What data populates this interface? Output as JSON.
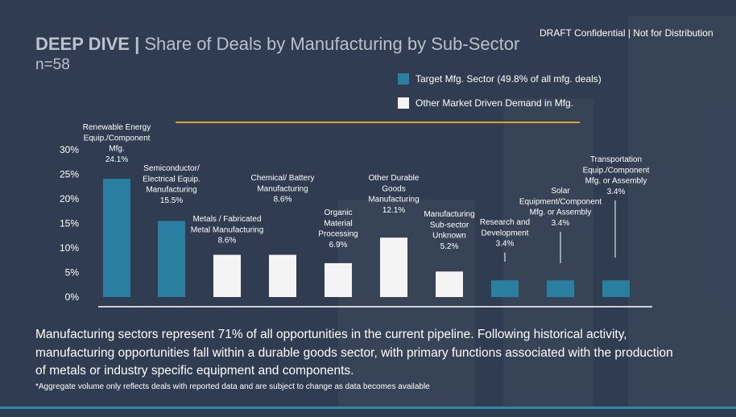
{
  "header": {
    "title_bold": "DEEP DIVE |",
    "title_rest": "Share of Deals by Manufacturing by Sub-Sector",
    "n_label": "n=58",
    "draft_notice": "DRAFT Confidential | Not for Distribution"
  },
  "legend": [
    {
      "label": "Target Mfg. Sector (49.8% of all mfg. deals)",
      "color": "#2a7fa0"
    },
    {
      "label": "Other Market Driven Demand in Mfg.",
      "color": "#f4f4f4"
    }
  ],
  "chart_data": {
    "type": "bar",
    "title": "",
    "xlabel": "",
    "ylabel": "",
    "ylim": [
      0,
      30
    ],
    "yticks": [
      "0%",
      "5%",
      "10%",
      "15%",
      "20%",
      "25%",
      "30%"
    ],
    "grid": false,
    "categories": [
      "Renewable Energy Equip./Component Mfg.",
      "Semiconductor/ Electrical Equip. Manufacturing",
      "Metals / Fabricated Metal Manufacturing",
      "Chemical/ Battery Manufacturing",
      "Organic Material Processing",
      "Other Durable Goods Manufacturing",
      "Manufacturing Sub-sector Unknown",
      "Research and Development",
      "Solar Equipment/Component Mfg. or Assembly",
      "Transportation Equip./Component Mfg. or Assembly"
    ],
    "label_lines": [
      [
        "Renewable Energy",
        "Equip./Component",
        "Mfg."
      ],
      [
        "Semiconductor/",
        "Electrical Equip.",
        "Manufacturing"
      ],
      [
        "Metals / Fabricated",
        "Metal Manufacturing"
      ],
      [
        "Chemical/ Battery",
        "Manufacturing"
      ],
      [
        "Organic",
        "Material",
        "Processing"
      ],
      [
        "Other Durable",
        "Goods",
        "Manufacturing"
      ],
      [
        "Manufacturing",
        "Sub-sector",
        "Unknown"
      ],
      [
        "Research and",
        "Development"
      ],
      [
        "Solar",
        "Equipment/Component",
        "Mfg. or Assembly"
      ],
      [
        "Transportation",
        "Equip./Component",
        "Mfg. or Assembly"
      ]
    ],
    "values": [
      24.1,
      15.5,
      8.6,
      8.6,
      6.9,
      12.1,
      5.2,
      3.4,
      3.4,
      3.4
    ],
    "value_labels": [
      "24.1%",
      "15.5%",
      "8.6%",
      "8.6%",
      "6.9%",
      "12.1%",
      "5.2%",
      "3.4%",
      "3.4%",
      "3.4%"
    ],
    "group": [
      "target",
      "target",
      "other",
      "other",
      "other",
      "other",
      "other",
      "target",
      "target",
      "target"
    ],
    "colors": {
      "target": "#2a7fa0",
      "other": "#f4f4f4",
      "accent_line": "#e0a228"
    },
    "legend_position": "top-right"
  },
  "summary": "Manufacturing sectors represent 71% of all opportunities in the current pipeline. Following historical activity, manufacturing opportunities fall within a durable goods sector, with primary functions associated with the production of metals or industry specific equipment and components.",
  "footnote": "*Aggregate volume only reflects deals with reported data and are subject to change as data becomes available"
}
